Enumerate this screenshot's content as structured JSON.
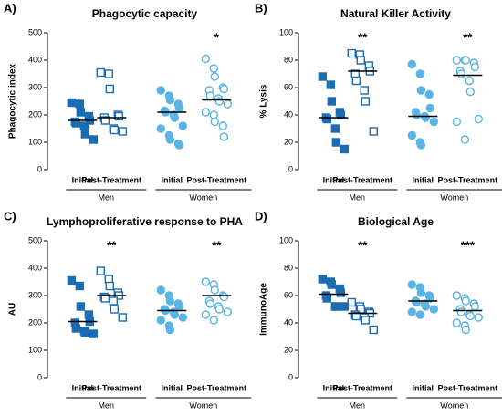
{
  "chart_data": [
    {
      "type": "dot",
      "panel_label": "A)",
      "title": "Phagocytic capacity",
      "y_label": "Phagocytic index",
      "ylim": [
        0,
        500
      ],
      "yticks": [
        0,
        100,
        200,
        300,
        400,
        500
      ],
      "categories": [
        "Initial",
        "Post-Treatment",
        "Initial",
        "Post-Treatment"
      ],
      "group_labels": [
        "Men",
        "Women"
      ],
      "groups": [
        {
          "color": "#1a6db3",
          "marker": "square",
          "filled": true,
          "median": 180,
          "values": [
            245,
            240,
            210,
            195,
            180,
            175,
            170,
            160,
            130,
            110
          ]
        },
        {
          "color": "#1a6db3",
          "marker": "square",
          "filled": false,
          "median": 190,
          "values": [
            355,
            350,
            295,
            200,
            195,
            190,
            180,
            150,
            145,
            140
          ]
        },
        {
          "color": "#5ab4e5",
          "marker": "circle",
          "filled": true,
          "median": 210,
          "values": [
            290,
            270,
            255,
            240,
            225,
            215,
            210,
            200,
            190,
            160,
            150,
            125,
            110,
            95,
            90
          ]
        },
        {
          "color": "#5ab4e5",
          "marker": "circle",
          "filled": false,
          "median": 255,
          "annotation": "*",
          "values": [
            405,
            370,
            340,
            300,
            295,
            290,
            270,
            260,
            250,
            240,
            210,
            200,
            175,
            160,
            120
          ]
        }
      ]
    },
    {
      "type": "dot",
      "panel_label": "B)",
      "title": "Natural Killer Activity",
      "y_label": "% Lysis",
      "ylim": [
        0,
        100
      ],
      "yticks": [
        0,
        20,
        40,
        60,
        80,
        100
      ],
      "categories": [
        "Initial",
        "Post-Treatment",
        "Initial",
        "Post-Treatment"
      ],
      "group_labels": [
        "Men",
        "Women"
      ],
      "groups": [
        {
          "color": "#1a6db3",
          "marker": "square",
          "filled": true,
          "median": 38,
          "values": [
            68,
            62,
            50,
            42,
            40,
            38,
            37,
            30,
            20,
            15
          ]
        },
        {
          "color": "#1a6db3",
          "marker": "square",
          "filled": false,
          "median": 72,
          "annotation": "**",
          "values": [
            85,
            84,
            80,
            76,
            72,
            70,
            65,
            58,
            50,
            28
          ]
        },
        {
          "color": "#5ab4e5",
          "marker": "circle",
          "filled": true,
          "median": 39,
          "values": [
            77,
            70,
            58,
            55,
            45,
            42,
            40,
            39,
            38,
            35,
            25,
            20,
            18
          ]
        },
        {
          "color": "#5ab4e5",
          "marker": "circle",
          "filled": false,
          "median": 69,
          "annotation": "**",
          "values": [
            80,
            80,
            80,
            78,
            75,
            72,
            70,
            65,
            57,
            37,
            35,
            22
          ]
        }
      ]
    },
    {
      "type": "dot",
      "panel_label": "C)",
      "title": "Lymphoproliferative response to PHA",
      "y_label": "AU",
      "ylim": [
        0,
        500
      ],
      "yticks": [
        0,
        100,
        200,
        300,
        400,
        500
      ],
      "categories": [
        "Initial",
        "Post-Treatment",
        "Initial",
        "Post-Treatment"
      ],
      "group_labels": [
        "Men",
        "Women"
      ],
      "groups": [
        {
          "color": "#1a6db3",
          "marker": "square",
          "filled": true,
          "median": 205,
          "values": [
            355,
            335,
            260,
            230,
            205,
            200,
            180,
            170,
            165,
            160
          ]
        },
        {
          "color": "#1a6db3",
          "marker": "square",
          "filled": false,
          "median": 300,
          "annotation": "**",
          "values": [
            390,
            360,
            335,
            310,
            300,
            295,
            290,
            280,
            250,
            220
          ]
        },
        {
          "color": "#5ab4e5",
          "marker": "circle",
          "filled": true,
          "median": 245,
          "values": [
            320,
            300,
            280,
            270,
            260,
            250,
            245,
            240,
            230,
            220,
            210,
            190,
            175
          ]
        },
        {
          "color": "#5ab4e5",
          "marker": "circle",
          "filled": false,
          "median": 300,
          "annotation": "**",
          "values": [
            350,
            340,
            320,
            300,
            295,
            280,
            270,
            260,
            250,
            240,
            230,
            210
          ]
        }
      ]
    },
    {
      "type": "dot",
      "panel_label": "D)",
      "title": "Biological Age",
      "y_label": "ImmunoAge",
      "ylim": [
        0,
        100
      ],
      "yticks": [
        0,
        20,
        40,
        60,
        80,
        100
      ],
      "categories": [
        "Initial",
        "Post-Treatment",
        "Initial",
        "Post-Treatment"
      ],
      "group_labels": [
        "Men",
        "Women"
      ],
      "groups": [
        {
          "color": "#1a6db3",
          "marker": "square",
          "filled": true,
          "median": 61,
          "values": [
            72,
            70,
            68,
            65,
            62,
            60,
            58,
            52,
            52,
            52
          ]
        },
        {
          "color": "#1a6db3",
          "marker": "square",
          "filled": false,
          "median": 47,
          "annotation": "**",
          "values": [
            55,
            52,
            50,
            48,
            47,
            46,
            45,
            44,
            42,
            35
          ]
        },
        {
          "color": "#5ab4e5",
          "marker": "circle",
          "filled": true,
          "median": 56,
          "values": [
            68,
            66,
            62,
            60,
            58,
            56,
            55,
            54,
            52,
            50,
            48,
            46
          ]
        },
        {
          "color": "#5ab4e5",
          "marker": "circle",
          "filled": false,
          "median": 49,
          "annotation": "***",
          "values": [
            60,
            58,
            56,
            54,
            52,
            50,
            48,
            46,
            45,
            44,
            40,
            38,
            35
          ]
        }
      ]
    }
  ]
}
